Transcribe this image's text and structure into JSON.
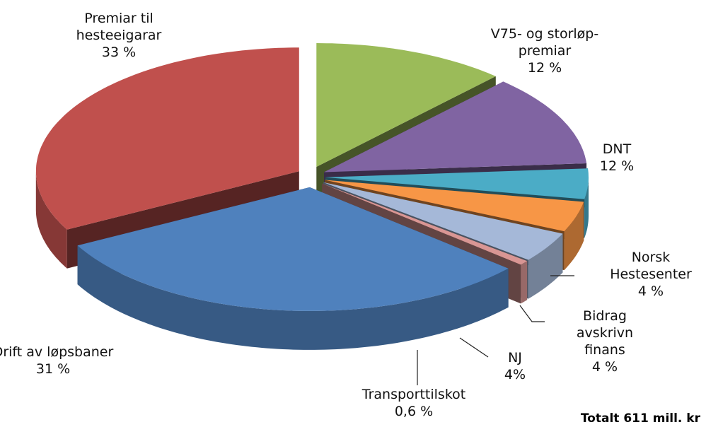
{
  "chart_data": {
    "type": "pie3d",
    "categories": [
      "V75- og storløp-\npremiar",
      "DNT",
      "Norsk\nHestesenter",
      "Bidrag avskrivn\nfinans",
      "NJ",
      "Transporttilskot",
      "Drift av løpsbaner",
      "Premiar til\nhesteeigarar"
    ],
    "values": [
      12,
      12,
      4,
      4,
      4,
      0.6,
      31,
      33
    ],
    "value_labels": [
      "12 %",
      "12 %",
      "4 %",
      "4 %",
      "4%",
      "0,6 %",
      "31 %",
      "33 %"
    ],
    "colors": [
      "#9bbb59",
      "#8064a2",
      "#4bacc6",
      "#f79646",
      "#a5b8d8",
      "#d99694",
      "#4f81bd",
      "#c0504d"
    ],
    "annotation": "Totalt 611 mill. kr"
  }
}
